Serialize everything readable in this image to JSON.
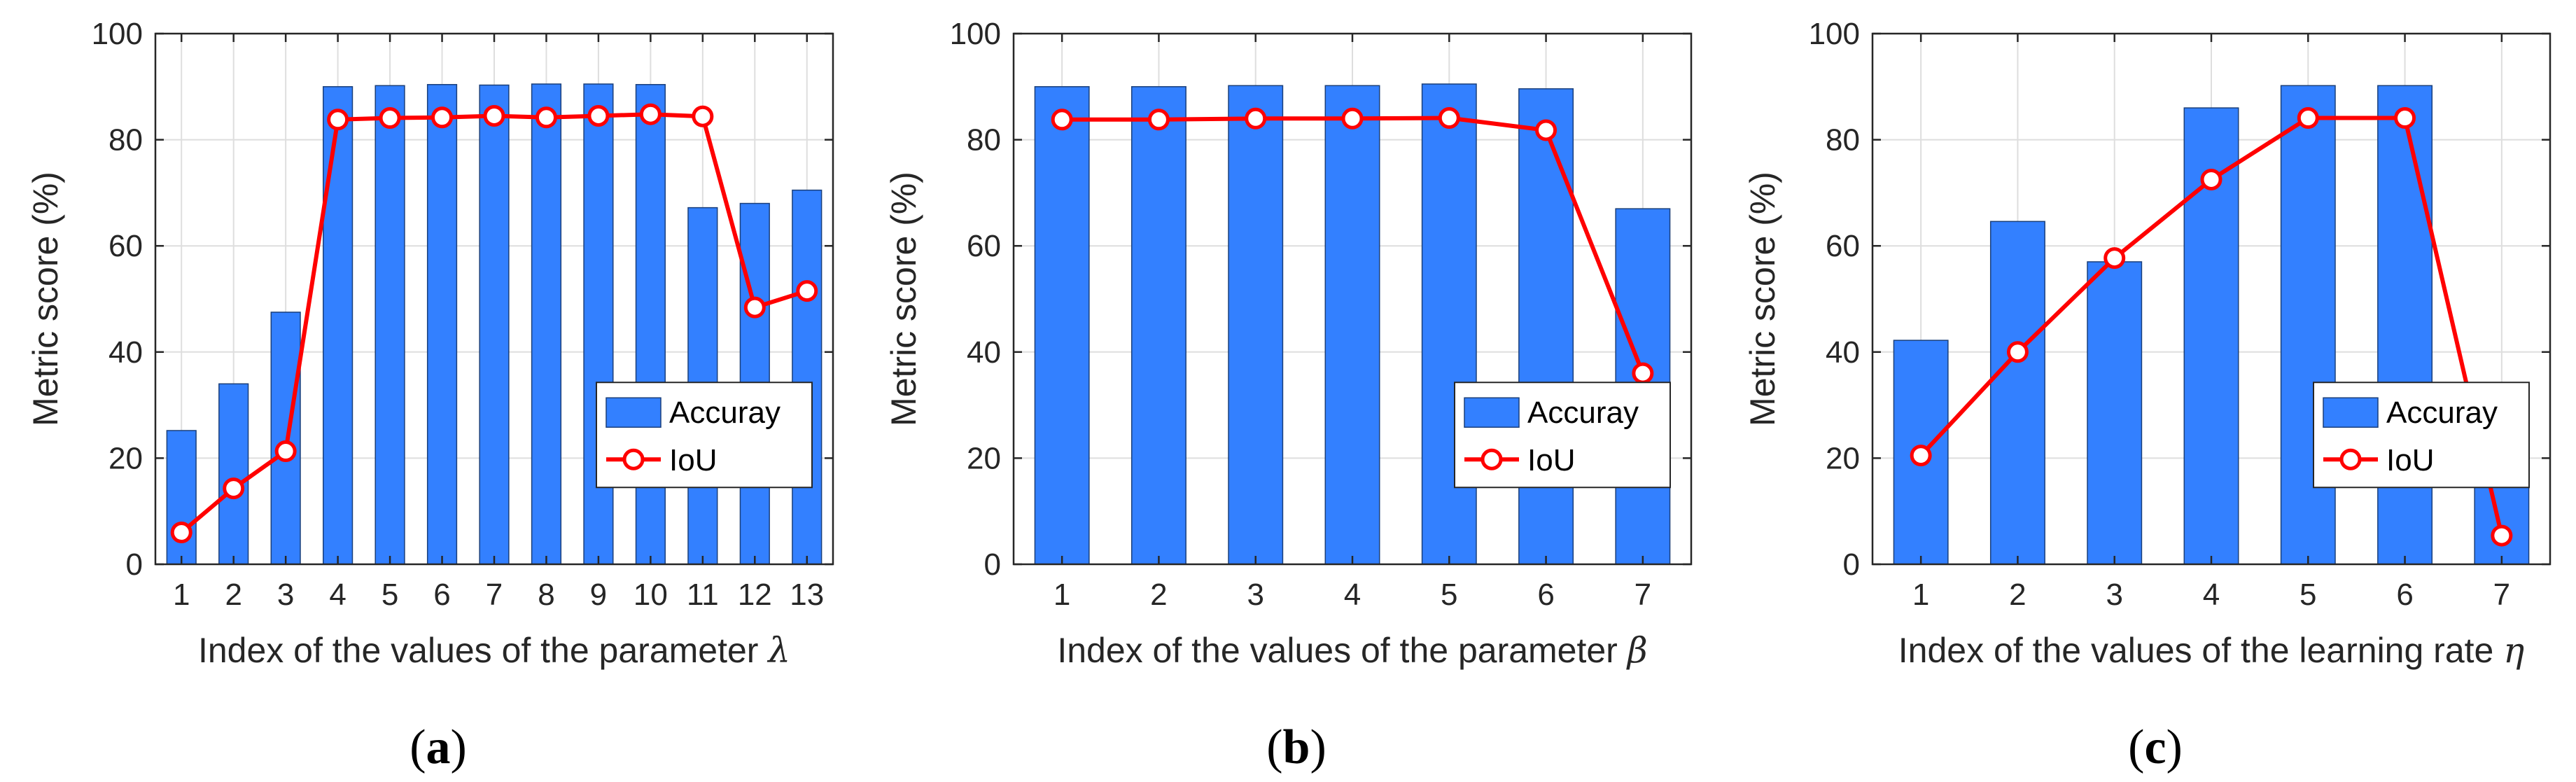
{
  "chart_data": [
    {
      "type": "bar",
      "panel": "(a)",
      "panel_letter": "a",
      "xlabel": "Index of the values of the parameter",
      "xlabel_symbol": "λ",
      "ylabel": "Metric score (%)",
      "ylim": [
        0,
        100
      ],
      "yticks": [
        0,
        20,
        40,
        60,
        80,
        100
      ],
      "categories": [
        "1",
        "2",
        "3",
        "4",
        "5",
        "6",
        "7",
        "8",
        "9",
        "10",
        "11",
        "12",
        "13"
      ],
      "grid": true,
      "legend_position": "lower-right",
      "series": [
        {
          "name": "Accuray",
          "type": "bar",
          "color": "#3380ff",
          "values": [
            25.2,
            34.0,
            47.5,
            90.0,
            90.2,
            90.4,
            90.3,
            90.5,
            90.5,
            90.4,
            67.2,
            68.0,
            70.5
          ]
        },
        {
          "name": "IoU",
          "type": "line",
          "color": "#ff0000",
          "values": [
            6.0,
            14.3,
            21.3,
            83.8,
            84.1,
            84.2,
            84.5,
            84.2,
            84.5,
            84.8,
            84.4,
            48.4,
            51.5
          ]
        }
      ]
    },
    {
      "type": "bar",
      "panel": "(b)",
      "panel_letter": "b",
      "xlabel": "Index of the values of the parameter",
      "xlabel_symbol": "β",
      "ylabel": "Metric score (%)",
      "ylim": [
        0,
        100
      ],
      "yticks": [
        0,
        20,
        40,
        60,
        80,
        100
      ],
      "categories": [
        "1",
        "2",
        "3",
        "4",
        "5",
        "6",
        "7"
      ],
      "grid": true,
      "legend_position": "lower-right",
      "series": [
        {
          "name": "Accuray",
          "type": "bar",
          "color": "#3380ff",
          "values": [
            90.0,
            90.0,
            90.2,
            90.2,
            90.5,
            89.6,
            67.0
          ]
        },
        {
          "name": "IoU",
          "type": "line",
          "color": "#ff0000",
          "values": [
            83.8,
            83.8,
            84.0,
            84.0,
            84.1,
            81.8,
            36.0
          ]
        }
      ]
    },
    {
      "type": "bar",
      "panel": "(c)",
      "panel_letter": "c",
      "xlabel": "Index of the values of the learning rate",
      "xlabel_symbol": "η",
      "ylabel": "Metric score (%)",
      "ylim": [
        0,
        100
      ],
      "yticks": [
        0,
        20,
        40,
        60,
        80,
        100
      ],
      "categories": [
        "1",
        "2",
        "3",
        "4",
        "5",
        "6",
        "7"
      ],
      "grid": true,
      "legend_position": "lower-right",
      "series": [
        {
          "name": "Accuray",
          "type": "bar",
          "color": "#3380ff",
          "values": [
            42.2,
            64.6,
            57.0,
            86.0,
            90.2,
            90.2,
            28.0
          ]
        },
        {
          "name": "IoU",
          "type": "line",
          "color": "#ff0000",
          "values": [
            20.5,
            40.0,
            57.7,
            72.5,
            84.1,
            84.1,
            5.4
          ]
        }
      ]
    }
  ]
}
